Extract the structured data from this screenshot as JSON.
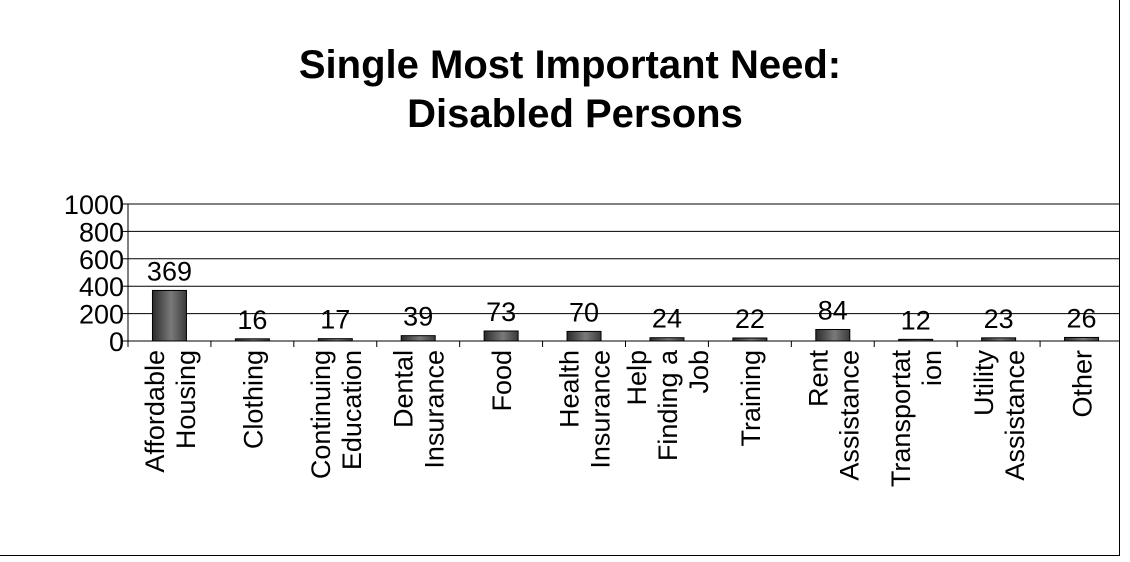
{
  "chart_data": {
    "type": "bar",
    "title_lines": [
      "Single Most Important  Need:",
      "Disabled Persons"
    ],
    "categories": [
      [
        "Affordable",
        "Housing"
      ],
      [
        "Clothing"
      ],
      [
        "Continuing",
        "Education"
      ],
      [
        "Dental",
        "Insurance"
      ],
      [
        "Food"
      ],
      [
        "Health",
        "Insurance"
      ],
      [
        "Help",
        "Finding a",
        "Job"
      ],
      [
        "Training"
      ],
      [
        "Rent",
        "Assistance"
      ],
      [
        "Transportat",
        "ion"
      ],
      [
        "Utility",
        "Assistance"
      ],
      [
        "Other"
      ]
    ],
    "values": [
      369,
      16,
      17,
      39,
      73,
      70,
      24,
      22,
      84,
      12,
      23,
      26
    ],
    "data_labels": [
      "369",
      "16",
      "17",
      "39",
      "73",
      "70",
      "24",
      "22",
      "84",
      "12",
      "23",
      "26"
    ],
    "ylim": [
      0,
      1000
    ],
    "yticks": [
      "0",
      "200",
      "400",
      "600",
      "800",
      "1000"
    ],
    "xlabel": "",
    "ylabel": "",
    "grid": true,
    "bar_color": "#5a5a5a"
  }
}
